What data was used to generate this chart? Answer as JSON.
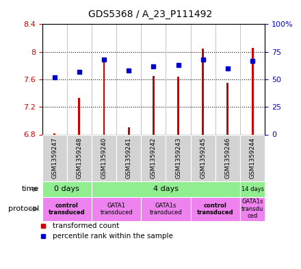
{
  "title": "GDS5368 / A_23_P111492",
  "samples": [
    "GSM1359247",
    "GSM1359248",
    "GSM1359240",
    "GSM1359241",
    "GSM1359242",
    "GSM1359243",
    "GSM1359245",
    "GSM1359246",
    "GSM1359244"
  ],
  "red_values": [
    6.81,
    7.33,
    7.92,
    6.9,
    7.65,
    7.64,
    8.05,
    7.55,
    8.06
  ],
  "blue_values": [
    52,
    57,
    68,
    58,
    62,
    63,
    68,
    60,
    67
  ],
  "ylim_left": [
    6.8,
    8.4
  ],
  "ylim_right": [
    0,
    100
  ],
  "yticks_left": [
    6.8,
    7.2,
    7.6,
    8.0,
    8.4
  ],
  "yticks_right": [
    0,
    25,
    50,
    75,
    100
  ],
  "ytick_labels_left": [
    "6.8",
    "7.2",
    "7.6",
    "8",
    "8.4"
  ],
  "ytick_labels_right": [
    "0",
    "25",
    "50",
    "75",
    "100%"
  ],
  "bar_bottom": 6.8,
  "bar_width": 0.08,
  "red_color": "#cc0000",
  "blue_color": "#0000cc",
  "dotted_lines": [
    7.2,
    7.6,
    8.0
  ],
  "time_spans": [
    {
      "label": "0 days",
      "start": 0,
      "end": 2,
      "fontsize": 8
    },
    {
      "label": "4 days",
      "start": 2,
      "end": 8,
      "fontsize": 8
    },
    {
      "label": "14 days",
      "start": 8,
      "end": 9,
      "fontsize": 6
    }
  ],
  "protocol_spans": [
    {
      "label": "control\ntransduced",
      "start": 0,
      "end": 2,
      "bold": true
    },
    {
      "label": "GATA1\ntransduced",
      "start": 2,
      "end": 4,
      "bold": false
    },
    {
      "label": "GATA1s\ntransduced",
      "start": 4,
      "end": 6,
      "bold": false
    },
    {
      "label": "control\ntransduced",
      "start": 6,
      "end": 8,
      "bold": true
    },
    {
      "label": "GATA1s\ntransdu\nced",
      "start": 8,
      "end": 9,
      "bold": false
    }
  ],
  "time_color": "#90ee90",
  "protocol_color": "#ee82ee",
  "sample_bg_color": "#d3d3d3",
  "legend_red": "transformed count",
  "legend_blue": "percentile rank within the sample",
  "bg_color": "#ffffff",
  "tick_color_left": "#cc0000",
  "tick_color_right": "#0000cc"
}
